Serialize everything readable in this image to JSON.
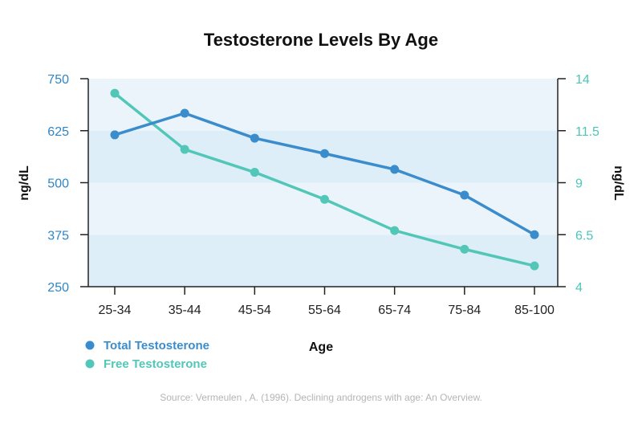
{
  "colors": {
    "total": "#3a8ccc",
    "free": "#52c7b8",
    "left_axis_text": "#2f86c6",
    "right_axis_text": "#4ec5b8",
    "band_light": "#ecf4fb",
    "band_dark": "#ddeef8"
  },
  "chart_data": {
    "type": "line",
    "title": "Testosterone Levels By Age",
    "xlabel": "Age",
    "ylabel_left": "ng/dL",
    "ylabel_right": "ng/dL",
    "categories": [
      "25-34",
      "35-44",
      "45-54",
      "55-64",
      "65-74",
      "75-84",
      "85-100"
    ],
    "ylim_left": [
      250,
      750
    ],
    "yticks_left": [
      "250",
      "375",
      "500",
      "625",
      "750"
    ],
    "ylim_right": [
      4,
      14
    ],
    "yticks_right": [
      "4",
      "6.5",
      "9",
      "11.5",
      "14"
    ],
    "grid": false,
    "legend_position": "bottom-left",
    "series": [
      {
        "name": "Total Testosterone",
        "axis": "left",
        "values": [
          615,
          667,
          607,
          570,
          532,
          470,
          375
        ]
      },
      {
        "name": "Free Testosterone",
        "axis": "right",
        "values": [
          13.3,
          10.6,
          9.5,
          8.2,
          6.7,
          5.8,
          5.0
        ]
      }
    ],
    "source": "Source: Vermeulen , A. (1996). Declining androgens with age: An Overview."
  }
}
